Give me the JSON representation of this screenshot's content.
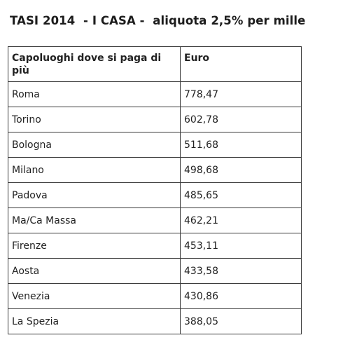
{
  "title": "TASI 2014  - I CASA -  aliquota 2,5% per mille",
  "table": {
    "headers": [
      "Capoluoghi dove si paga di più",
      "Euro"
    ],
    "rows": [
      [
        "Roma",
        "778,47"
      ],
      [
        "Torino",
        "602,78"
      ],
      [
        "Bologna",
        "511,68"
      ],
      [
        "Milano",
        "498,68"
      ],
      [
        "Padova",
        "485,65"
      ],
      [
        "Ma/Ca Massa",
        "462,21"
      ],
      [
        "Firenze",
        "453,11"
      ],
      [
        "Aosta",
        "433,58"
      ],
      [
        "Venezia",
        "430,86"
      ],
      [
        "La Spezia",
        "388,05"
      ]
    ]
  }
}
